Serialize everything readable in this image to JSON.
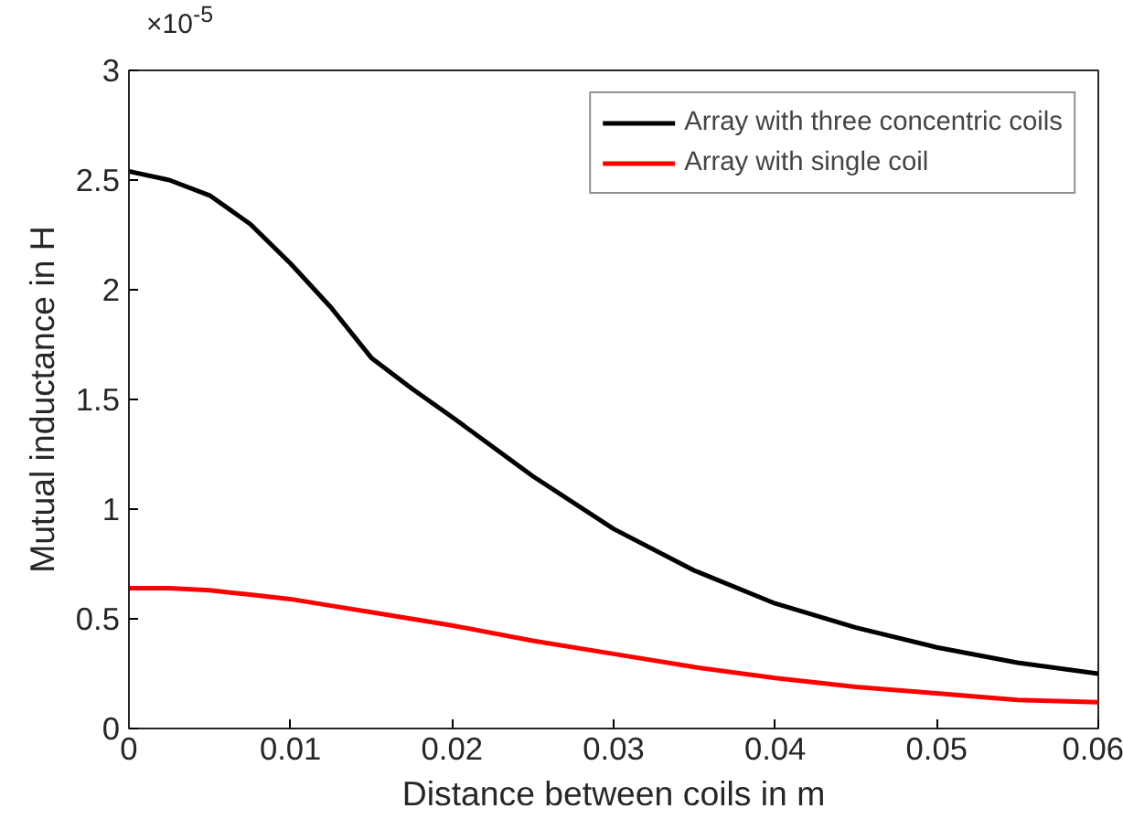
{
  "chart_data": {
    "type": "line",
    "xlabel": "Distance between coils in m",
    "ylabel": "Mutual inductance in H",
    "annotations": [
      "×10$^{-5}$"
    ],
    "x": [
      0,
      0.0025,
      0.005,
      0.0075,
      0.01,
      0.0125,
      0.015,
      0.0175,
      0.02,
      0.025,
      0.03,
      0.035,
      0.04,
      0.045,
      0.05,
      0.055,
      0.06
    ],
    "series": [
      {
        "name": "Array with three concentric coils",
        "color": "#000000",
        "values": [
          2.54,
          2.5,
          2.43,
          2.3,
          2.12,
          1.92,
          1.69,
          1.55,
          1.42,
          1.15,
          0.91,
          0.72,
          0.57,
          0.46,
          0.37,
          0.3,
          0.25
        ]
      },
      {
        "name": "Array with single coil",
        "color": "#ff0000",
        "values": [
          0.64,
          0.64,
          0.63,
          0.61,
          0.59,
          0.56,
          0.53,
          0.5,
          0.47,
          0.4,
          0.34,
          0.28,
          0.23,
          0.19,
          0.16,
          0.13,
          0.12
        ]
      }
    ],
    "xlim": [
      0,
      0.06
    ],
    "ylim": [
      0,
      3
    ],
    "xticks": [
      0,
      0.01,
      0.02,
      0.03,
      0.04,
      0.05,
      0.06
    ],
    "yticks": [
      0,
      0.5,
      1,
      1.5,
      2,
      2.5,
      3
    ],
    "grid": false,
    "legend": "top right",
    "marker": "none",
    "line_style": "solid"
  }
}
